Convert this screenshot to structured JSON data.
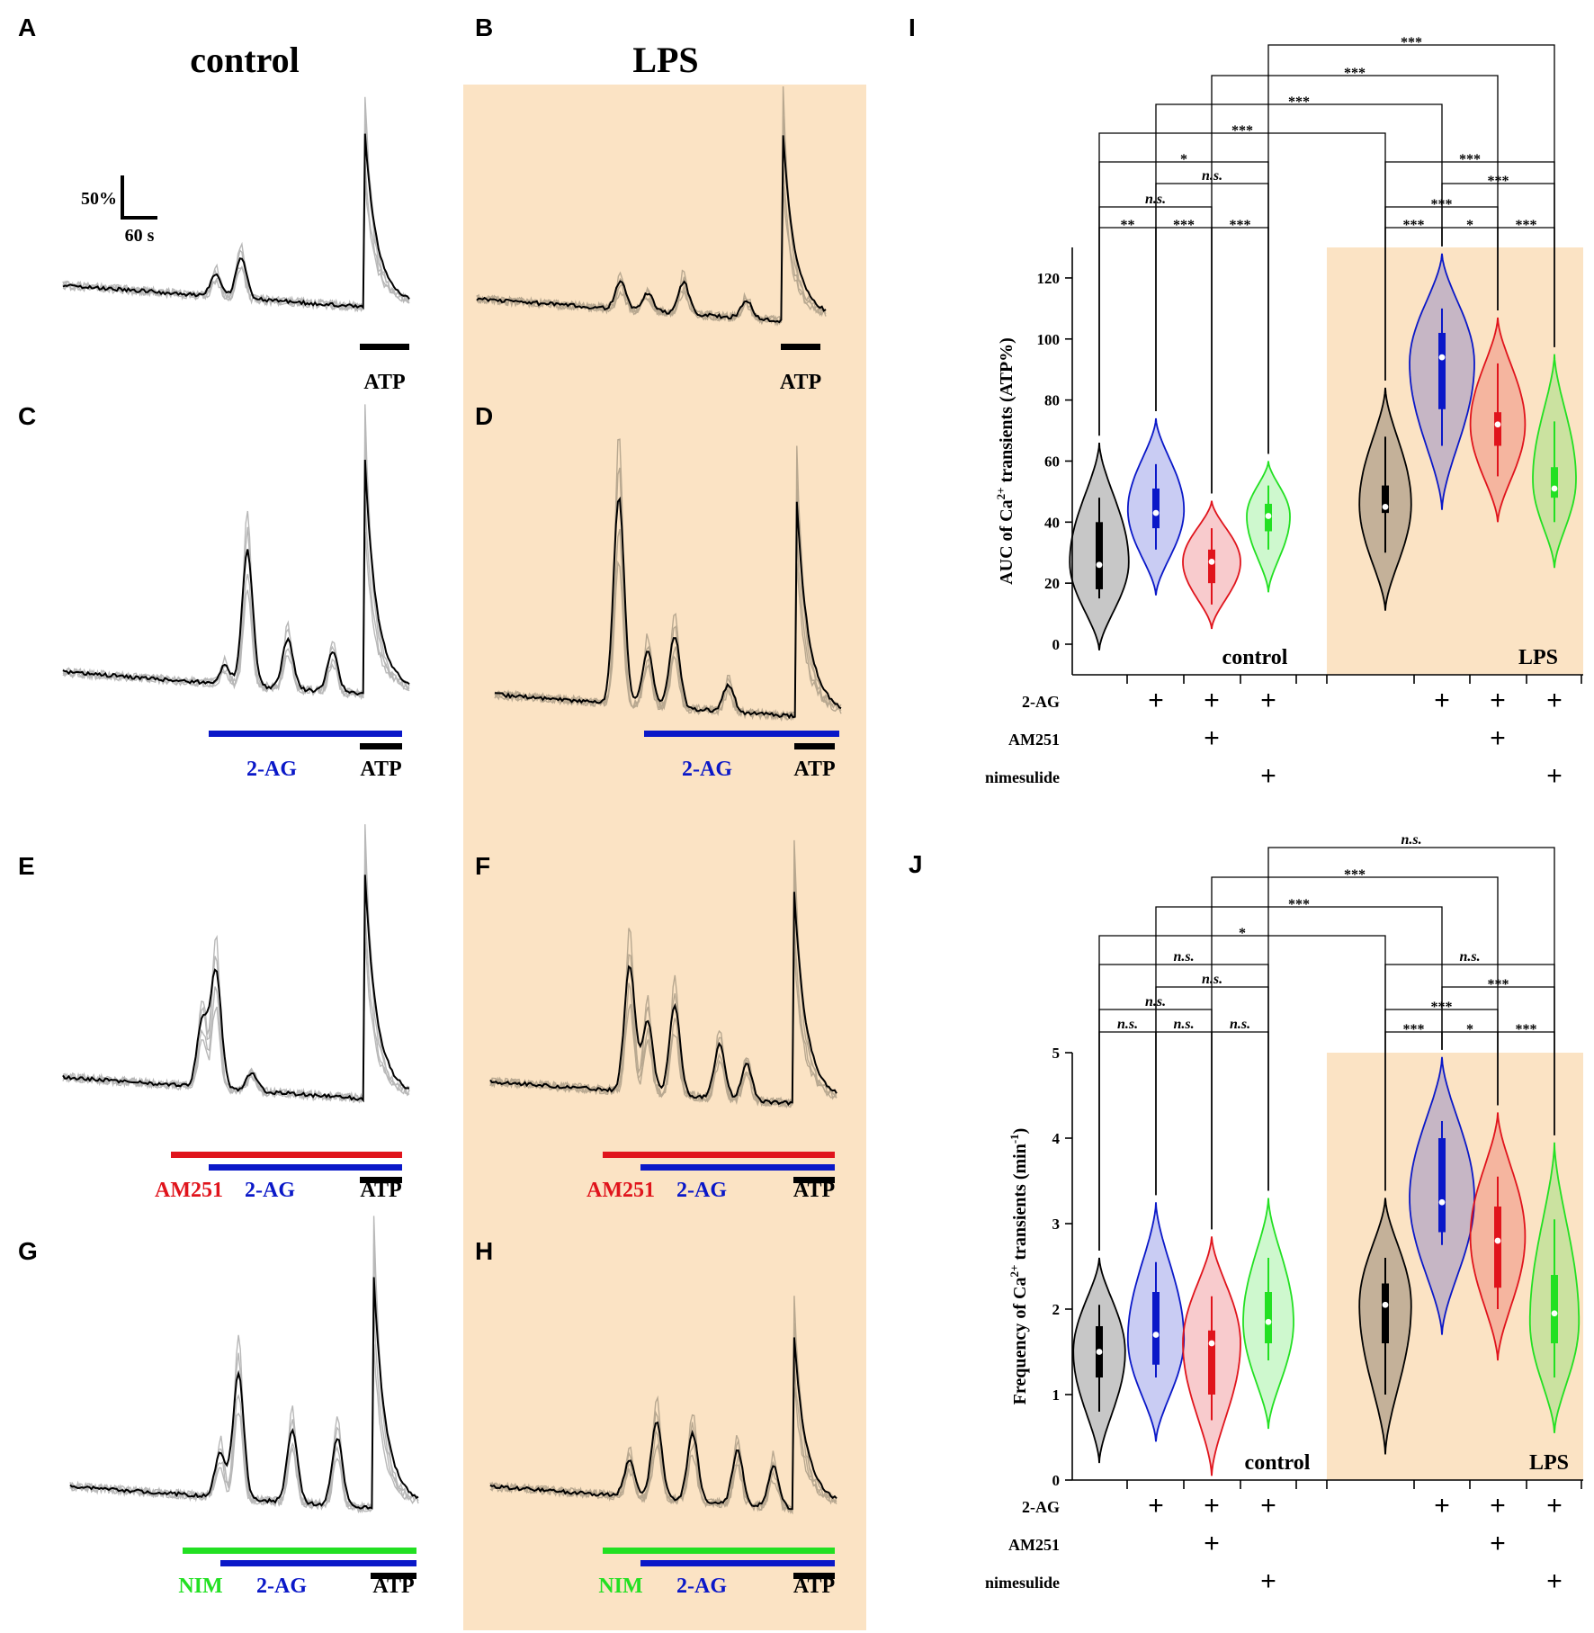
{
  "colors": {
    "lps_bg": "#fbe3c4",
    "vehicle": "#000000",
    "two_ag": "#0a18c8",
    "am251": "#e0141c",
    "nim": "#22e022",
    "trace_light_control": "#b8b8b8",
    "trace_light_lps": "#b8a890"
  },
  "titles": {
    "control": "control",
    "lps": "LPS"
  },
  "scale_bar": {
    "y_label": "50%",
    "x_label": "60 s"
  },
  "panels": [
    {
      "id": "A",
      "letter": "A",
      "lps": false,
      "bars": [
        {
          "drug": "ATP",
          "color": "#000000"
        }
      ]
    },
    {
      "id": "B",
      "letter": "B",
      "lps": true,
      "bars": [
        {
          "drug": "ATP",
          "color": "#000000"
        }
      ]
    },
    {
      "id": "C",
      "letter": "C",
      "lps": false,
      "bars": [
        {
          "drug": "2-AG",
          "color": "#0a18c8"
        },
        {
          "drug": "ATP",
          "color": "#000000"
        }
      ]
    },
    {
      "id": "D",
      "letter": "D",
      "lps": true,
      "bars": [
        {
          "drug": "2-AG",
          "color": "#0a18c8"
        },
        {
          "drug": "ATP",
          "color": "#000000"
        }
      ]
    },
    {
      "id": "E",
      "letter": "E",
      "lps": false,
      "bars": [
        {
          "drug": "AM251",
          "color": "#e0141c"
        },
        {
          "drug": "2-AG",
          "color": "#0a18c8"
        },
        {
          "drug": "ATP",
          "color": "#000000"
        }
      ]
    },
    {
      "id": "F",
      "letter": "F",
      "lps": true,
      "bars": [
        {
          "drug": "AM251",
          "color": "#e0141c"
        },
        {
          "drug": "2-AG",
          "color": "#0a18c8"
        },
        {
          "drug": "ATP",
          "color": "#000000"
        }
      ]
    },
    {
      "id": "G",
      "letter": "G",
      "lps": false,
      "bars": [
        {
          "drug": "NIM",
          "color": "#22e022"
        },
        {
          "drug": "2-AG",
          "color": "#0a18c8"
        },
        {
          "drug": "ATP",
          "color": "#000000"
        }
      ]
    },
    {
      "id": "H",
      "letter": "H",
      "lps": true,
      "bars": [
        {
          "drug": "NIM",
          "color": "#22e022"
        },
        {
          "drug": "2-AG",
          "color": "#0a18c8"
        },
        {
          "drug": "ATP",
          "color": "#000000"
        }
      ]
    }
  ],
  "chart_data": [
    {
      "panel": "I",
      "type": "violin",
      "ylabel_pre": "AUC of Ca",
      "ylabel_sup": "2+",
      "ylabel_post": " transients (ATP%)",
      "ylim": [
        0,
        130
      ],
      "yticks": [
        0,
        20,
        40,
        60,
        80,
        100,
        120
      ],
      "group_labels": {
        "control": "control",
        "lps": "LPS"
      },
      "row_labels": [
        "2-AG",
        "AM251",
        "nimesulide"
      ],
      "treatment_matrix": [
        [
          false,
          true,
          true,
          true,
          false,
          true,
          true,
          true
        ],
        [
          false,
          false,
          true,
          false,
          false,
          false,
          true,
          false
        ],
        [
          false,
          false,
          false,
          true,
          false,
          false,
          false,
          true
        ]
      ],
      "groups": [
        {
          "name": "control vehicle",
          "color": "#000000",
          "min": -2,
          "max": 66,
          "median": 26,
          "q1": 18,
          "q3": 40,
          "wlo": 15,
          "whi": 48,
          "mode": 27,
          "hw": 0.82
        },
        {
          "name": "control 2-AG",
          "color": "#0a18c8",
          "min": 16,
          "max": 74,
          "median": 43,
          "q1": 38,
          "q3": 51,
          "wlo": 31,
          "whi": 59,
          "mode": 44,
          "hw": 0.78
        },
        {
          "name": "control 2-AG+AM251",
          "color": "#e0141c",
          "min": 5,
          "max": 47,
          "median": 27,
          "q1": 20,
          "q3": 31,
          "wlo": 13,
          "whi": 38,
          "mode": 27,
          "hw": 0.8
        },
        {
          "name": "control 2-AG+nimesulide",
          "color": "#22e022",
          "min": 17,
          "max": 60,
          "median": 42,
          "q1": 37,
          "q3": 46,
          "wlo": 31,
          "whi": 52,
          "mode": 42,
          "hw": 0.6
        },
        {
          "name": "LPS vehicle",
          "color": "#000000",
          "min": 11,
          "max": 84,
          "median": 45,
          "q1": 43,
          "q3": 52,
          "wlo": 30,
          "whi": 68,
          "mode": 46,
          "hw": 0.72
        },
        {
          "name": "LPS 2-AG",
          "color": "#0a18c8",
          "min": 44,
          "max": 128,
          "median": 94,
          "q1": 77,
          "q3": 102,
          "wlo": 65,
          "whi": 110,
          "mode": 92,
          "hw": 0.9
        },
        {
          "name": "LPS 2-AG+AM251",
          "color": "#e0141c",
          "min": 40,
          "max": 107,
          "median": 72,
          "q1": 65,
          "q3": 76,
          "wlo": 55,
          "whi": 92,
          "mode": 72,
          "hw": 0.76
        },
        {
          "name": "LPS 2-AG+nimesulide",
          "color": "#22e022",
          "min": 25,
          "max": 95,
          "median": 51,
          "q1": 48,
          "q3": 58,
          "wlo": 40,
          "whi": 73,
          "mode": 54,
          "hw": 0.6
        }
      ],
      "comparisons": [
        {
          "a": 1,
          "b": 2,
          "label": "**",
          "italic": false
        },
        {
          "a": 2,
          "b": 3,
          "label": "***",
          "italic": false
        },
        {
          "a": 3,
          "b": 4,
          "label": "***",
          "italic": false
        },
        {
          "a": 1,
          "b": 3,
          "label": "n.s.",
          "italic": true
        },
        {
          "a": 2,
          "b": 4,
          "label": "n.s.",
          "italic": true
        },
        {
          "a": 1,
          "b": 4,
          "label": "*",
          "italic": false
        },
        {
          "a": 5,
          "b": 6,
          "label": "***",
          "italic": false
        },
        {
          "a": 6,
          "b": 7,
          "label": "*",
          "italic": false
        },
        {
          "a": 7,
          "b": 8,
          "label": "***",
          "italic": false
        },
        {
          "a": 5,
          "b": 7,
          "label": "***",
          "italic": false
        },
        {
          "a": 6,
          "b": 8,
          "label": "***",
          "italic": false
        },
        {
          "a": 5,
          "b": 8,
          "label": "***",
          "italic": false
        },
        {
          "a": 1,
          "b": 5,
          "label": "***",
          "italic": false
        },
        {
          "a": 2,
          "b": 6,
          "label": "***",
          "italic": false
        },
        {
          "a": 3,
          "b": 7,
          "label": "***",
          "italic": false
        },
        {
          "a": 4,
          "b": 8,
          "label": "***",
          "italic": false
        }
      ]
    },
    {
      "panel": "J",
      "type": "violin",
      "ylabel_pre": "Frequency of Ca",
      "ylabel_sup": "2+",
      "ylabel_post": " transients (min",
      "ylabel_sup2": "-1",
      "ylabel_end": ")",
      "ylim": [
        0,
        5
      ],
      "yticks": [
        0,
        1,
        2,
        3,
        4,
        5
      ],
      "group_labels": {
        "control": "control",
        "lps": "LPS"
      },
      "row_labels": [
        "2-AG",
        "AM251",
        "nimesulide"
      ],
      "treatment_matrix": [
        [
          false,
          true,
          true,
          true,
          false,
          true,
          true,
          true
        ],
        [
          false,
          false,
          true,
          false,
          false,
          false,
          true,
          false
        ],
        [
          false,
          false,
          false,
          true,
          false,
          false,
          false,
          true
        ]
      ],
      "groups": [
        {
          "name": "control vehicle",
          "color": "#000000",
          "min": 0.2,
          "max": 2.6,
          "median": 1.5,
          "q1": 1.2,
          "q3": 1.8,
          "wlo": 0.8,
          "whi": 2.05,
          "mode": 1.5,
          "hw": 0.72
        },
        {
          "name": "control 2-AG",
          "color": "#0a18c8",
          "min": 0.45,
          "max": 3.25,
          "median": 1.7,
          "q1": 1.35,
          "q3": 2.2,
          "wlo": 1.2,
          "whi": 2.55,
          "mode": 1.65,
          "hw": 0.78
        },
        {
          "name": "control 2-AG+AM251",
          "color": "#e0141c",
          "min": 0.05,
          "max": 2.85,
          "median": 1.6,
          "q1": 1.0,
          "q3": 1.75,
          "wlo": 0.7,
          "whi": 2.15,
          "mode": 1.6,
          "hw": 0.8
        },
        {
          "name": "control 2-AG+nimesulide",
          "color": "#22e022",
          "min": 0.6,
          "max": 3.3,
          "median": 1.85,
          "q1": 1.6,
          "q3": 2.2,
          "wlo": 1.4,
          "whi": 2.6,
          "mode": 1.85,
          "hw": 0.7
        },
        {
          "name": "LPS vehicle",
          "color": "#000000",
          "min": 0.3,
          "max": 3.3,
          "median": 2.05,
          "q1": 1.6,
          "q3": 2.3,
          "wlo": 1.0,
          "whi": 2.6,
          "mode": 2.05,
          "hw": 0.72
        },
        {
          "name": "LPS 2-AG",
          "color": "#0a18c8",
          "min": 1.7,
          "max": 4.95,
          "median": 3.25,
          "q1": 2.9,
          "q3": 4.0,
          "wlo": 2.75,
          "whi": 4.2,
          "mode": 3.3,
          "hw": 0.9
        },
        {
          "name": "LPS 2-AG+AM251",
          "color": "#e0141c",
          "min": 1.4,
          "max": 4.3,
          "median": 2.8,
          "q1": 2.25,
          "q3": 3.2,
          "wlo": 2.0,
          "whi": 3.55,
          "mode": 2.85,
          "hw": 0.76
        },
        {
          "name": "LPS 2-AG+nimesulide",
          "color": "#22e022",
          "min": 0.55,
          "max": 3.95,
          "median": 1.95,
          "q1": 1.6,
          "q3": 2.4,
          "wlo": 1.2,
          "whi": 3.05,
          "mode": 1.85,
          "hw": 0.68
        }
      ],
      "comparisons": [
        {
          "a": 1,
          "b": 2,
          "label": "n.s.",
          "italic": true
        },
        {
          "a": 2,
          "b": 3,
          "label": "n.s.",
          "italic": true
        },
        {
          "a": 3,
          "b": 4,
          "label": "n.s.",
          "italic": true
        },
        {
          "a": 1,
          "b": 3,
          "label": "n.s.",
          "italic": true
        },
        {
          "a": 2,
          "b": 4,
          "label": "n.s.",
          "italic": true
        },
        {
          "a": 1,
          "b": 4,
          "label": "n.s.",
          "italic": true
        },
        {
          "a": 5,
          "b": 6,
          "label": "***",
          "italic": false
        },
        {
          "a": 6,
          "b": 7,
          "label": "*",
          "italic": false
        },
        {
          "a": 7,
          "b": 8,
          "label": "***",
          "italic": false
        },
        {
          "a": 5,
          "b": 7,
          "label": "***",
          "italic": false
        },
        {
          "a": 6,
          "b": 8,
          "label": "***",
          "italic": false
        },
        {
          "a": 5,
          "b": 8,
          "label": "n.s.",
          "italic": true
        },
        {
          "a": 1,
          "b": 5,
          "label": "*",
          "italic": false
        },
        {
          "a": 2,
          "b": 6,
          "label": "***",
          "italic": false
        },
        {
          "a": 3,
          "b": 7,
          "label": "***",
          "italic": false
        },
        {
          "a": 4,
          "b": 8,
          "label": "n.s.",
          "italic": true
        }
      ]
    }
  ]
}
